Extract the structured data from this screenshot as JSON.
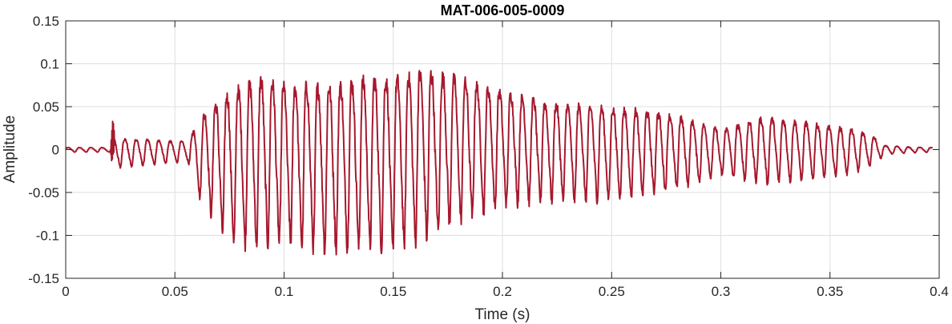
{
  "chart_data": {
    "type": "line",
    "title": "MAT-006-005-0009",
    "xlabel": "Time (s)",
    "ylabel": "Amplitude",
    "xlim": [
      0,
      0.4
    ],
    "ylim": [
      -0.15,
      0.15
    ],
    "grid": true,
    "line_color": "#a6192e",
    "x_ticks": [
      0,
      0.05,
      0.1,
      0.15,
      0.2,
      0.25,
      0.3,
      0.35,
      0.4
    ],
    "x_tick_labels": [
      "0",
      "0.05",
      "0.1",
      "0.15",
      "0.2",
      "0.25",
      "0.3",
      "0.35",
      "0.4"
    ],
    "y_ticks": [
      0.15,
      0.1,
      0.05,
      0,
      -0.05,
      -0.1,
      -0.15
    ],
    "y_tick_labels": [
      "0.15",
      "0.1",
      "0.05",
      "0",
      "-0.05",
      "-0.1",
      "-0.15"
    ],
    "series": [
      {
        "x_range": [
          0,
          0.397
        ],
        "envelope": {
          "time": [
            0,
            0.021,
            0.0215,
            0.056,
            0.06,
            0.065,
            0.075,
            0.09,
            0.1,
            0.12,
            0.14,
            0.15,
            0.165,
            0.175,
            0.19,
            0.2,
            0.22,
            0.24,
            0.26,
            0.28,
            0.3,
            0.32,
            0.34,
            0.36,
            0.37,
            0.375,
            0.385,
            0.397
          ],
          "max": [
            0.003,
            0.003,
            0.018,
            0.012,
            0.04,
            0.062,
            0.09,
            0.11,
            0.1,
            0.1,
            0.11,
            0.11,
            0.118,
            0.11,
            0.095,
            0.085,
            0.07,
            0.065,
            0.06,
            0.05,
            0.03,
            0.048,
            0.04,
            0.03,
            0.02,
            0.006,
            0.004,
            0.003
          ],
          "min": [
            -0.003,
            -0.003,
            -0.022,
            -0.014,
            -0.05,
            -0.07,
            -0.11,
            -0.112,
            -0.11,
            -0.118,
            -0.115,
            -0.118,
            -0.105,
            -0.09,
            -0.075,
            -0.065,
            -0.06,
            -0.06,
            -0.055,
            -0.045,
            -0.03,
            -0.04,
            -0.035,
            -0.028,
            -0.018,
            -0.006,
            -0.004,
            -0.003
          ]
        },
        "oscillation_period_s": 0.0052
      }
    ]
  }
}
